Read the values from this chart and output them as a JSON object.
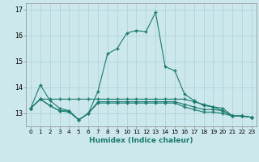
{
  "xlabel": "Humidex (Indice chaleur)",
  "background_color": "#cce8ec",
  "grid_color": "#aad0d8",
  "line_color": "#1a7a6e",
  "xlim": [
    -0.5,
    23.5
  ],
  "ylim": [
    12.5,
    17.25
  ],
  "xticks": [
    0,
    1,
    2,
    3,
    4,
    5,
    6,
    7,
    8,
    9,
    10,
    11,
    12,
    13,
    14,
    15,
    16,
    17,
    18,
    19,
    20,
    21,
    22,
    23
  ],
  "yticks": [
    13,
    14,
    15,
    16,
    17
  ],
  "curve_main": [
    13.2,
    14.1,
    13.5,
    13.2,
    13.1,
    12.75,
    13.0,
    13.85,
    15.3,
    15.5,
    16.1,
    16.2,
    16.15,
    16.9,
    14.8,
    14.65,
    13.75,
    13.5,
    13.3,
    13.25,
    13.1,
    12.9,
    12.9,
    12.85
  ],
  "curve_upper": [
    13.2,
    13.55,
    13.55,
    13.55,
    13.55,
    13.55,
    13.55,
    13.55,
    13.55,
    13.55,
    13.55,
    13.55,
    13.55,
    13.55,
    13.55,
    13.55,
    13.55,
    13.45,
    13.35,
    13.25,
    13.2,
    12.9,
    12.9,
    12.85
  ],
  "curve_mid": [
    13.2,
    13.55,
    13.3,
    13.1,
    13.1,
    12.75,
    13.0,
    13.45,
    13.45,
    13.45,
    13.45,
    13.45,
    13.45,
    13.45,
    13.45,
    13.45,
    13.35,
    13.25,
    13.15,
    13.15,
    13.1,
    12.9,
    12.9,
    12.85
  ],
  "curve_lower": [
    13.2,
    13.55,
    13.3,
    13.1,
    13.05,
    12.75,
    13.0,
    13.4,
    13.4,
    13.4,
    13.4,
    13.4,
    13.4,
    13.4,
    13.4,
    13.4,
    13.25,
    13.15,
    13.05,
    13.05,
    13.0,
    12.9,
    12.9,
    12.85
  ]
}
